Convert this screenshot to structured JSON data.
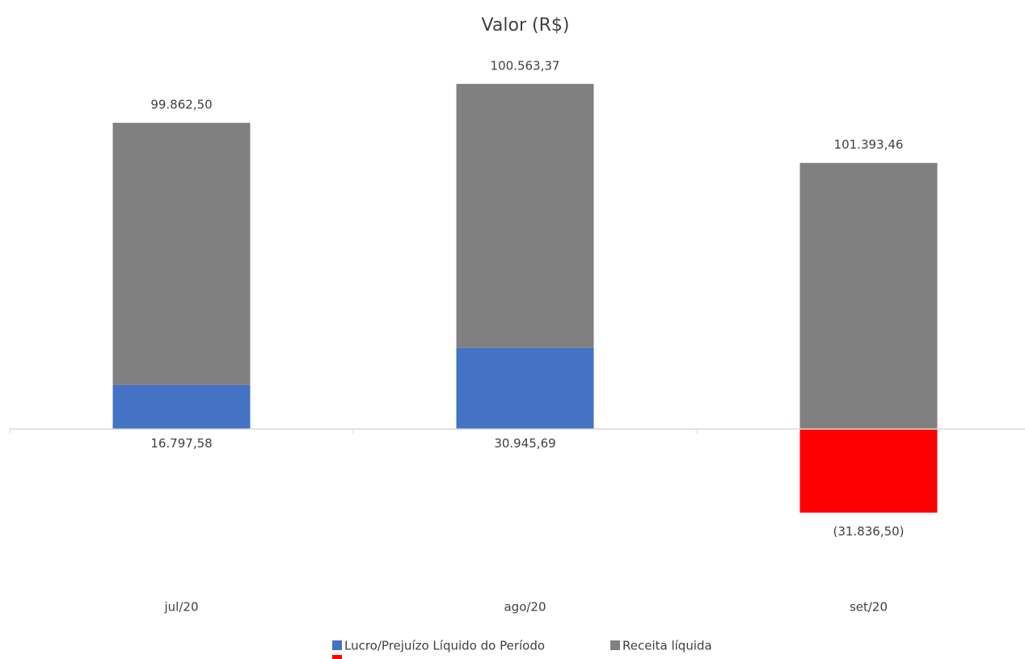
{
  "chart_data": {
    "type": "stacked_bar",
    "title": "Valor (R$)",
    "categories": [
      "jul/20",
      "ago/20",
      "set/20"
    ],
    "series": [
      {
        "name": "Lucro/Prejuízo Líquido do Período",
        "color": "#4472c4",
        "negative_color": "#ff0000",
        "values": [
          16797.58,
          30945.69,
          -31836.5
        ],
        "value_labels": [
          "16.797,58",
          "30.945,69",
          "(31.836,50)"
        ]
      },
      {
        "name": "Receita líquida",
        "color": "#808080",
        "values": [
          99862.5,
          100563.37,
          101393.46
        ],
        "value_labels": [
          "99.862,50",
          "100.563,37",
          "101.393,46"
        ]
      }
    ],
    "ylim": [
      -55000,
      145000
    ]
  }
}
